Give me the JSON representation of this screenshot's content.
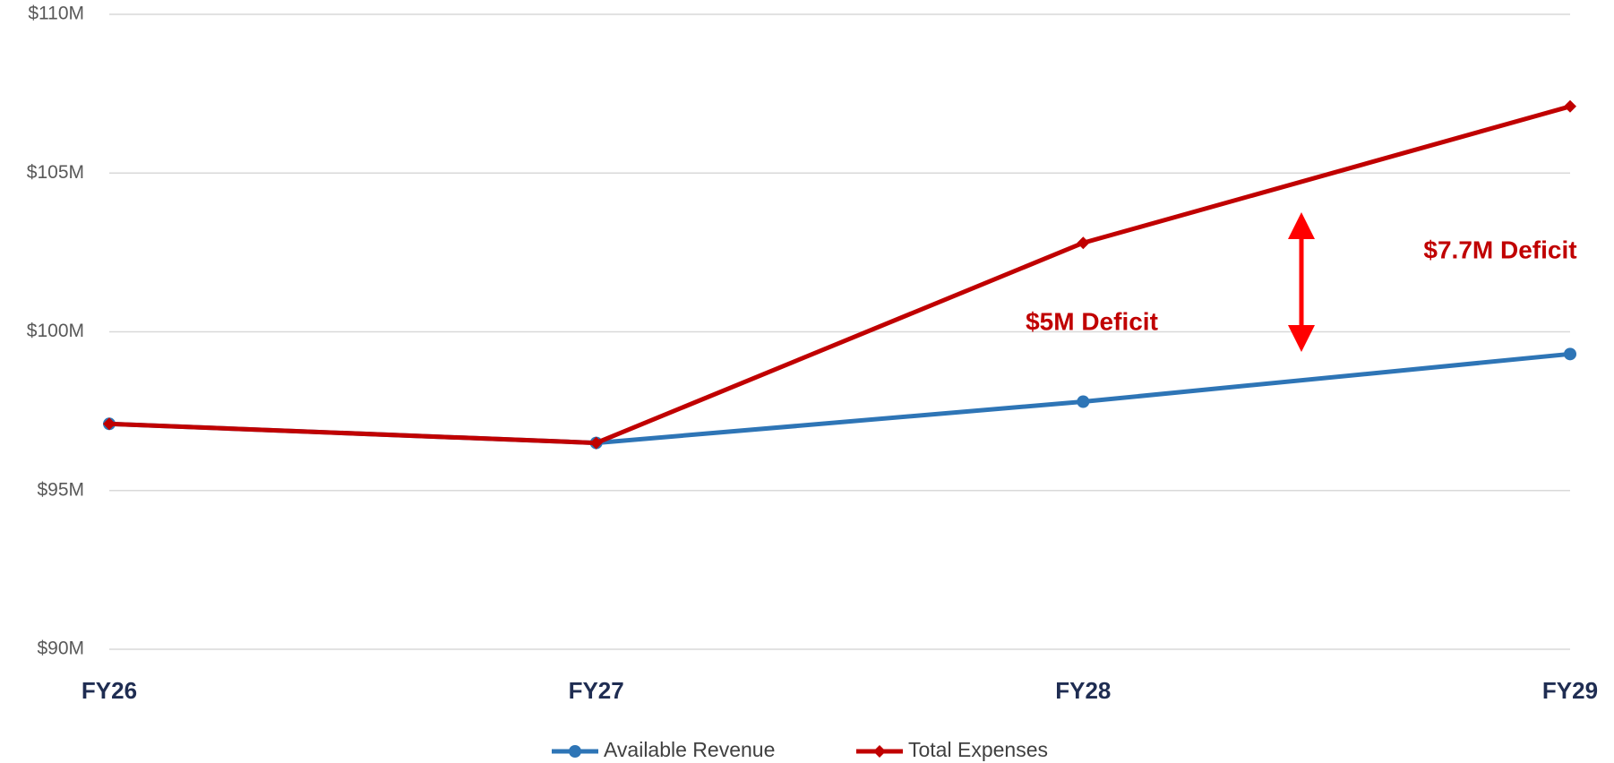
{
  "chart_data": {
    "type": "line",
    "categories": [
      "FY26",
      "FY27",
      "FY28",
      "FY29"
    ],
    "series": [
      {
        "name": "Available Revenue",
        "color": "#2e75b6",
        "marker": "circle",
        "values": [
          97.1,
          96.5,
          97.8,
          99.3
        ]
      },
      {
        "name": "Total Expenses",
        "color": "#c00000",
        "marker": "diamond",
        "values": [
          97.1,
          96.5,
          102.8,
          107.1
        ]
      }
    ],
    "ylim": [
      90,
      110
    ],
    "yticks": [
      {
        "value": 90,
        "label": "$90M"
      },
      {
        "value": 95,
        "label": "$95M"
      },
      {
        "value": 100,
        "label": "$100M"
      },
      {
        "value": 105,
        "label": "$105M"
      },
      {
        "value": 110,
        "label": "$110M"
      }
    ],
    "grid": true,
    "legend": "bottom",
    "annotations": [
      "$5M Deficit",
      "$7.7M Deficit"
    ]
  }
}
